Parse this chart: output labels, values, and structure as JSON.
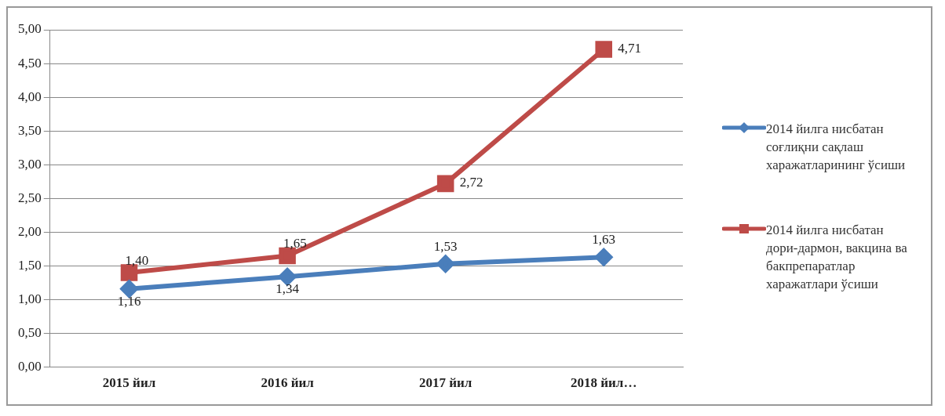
{
  "chart_data": {
    "type": "line",
    "categories": [
      "2015 йил",
      "2016 йил",
      "2017 йил",
      "2018 йил…"
    ],
    "series": [
      {
        "name": "2014 йилга нисбатан соғлиқни сақлаш харажатларининг ўсиши",
        "color": "#4a7ebb",
        "marker": "diamond",
        "values": [
          1.16,
          1.34,
          1.53,
          1.63
        ],
        "value_labels": [
          "1,16",
          "1,34",
          "1,53",
          "1,63"
        ]
      },
      {
        "name": "2014 йилга нисбатан дори-дармон, вакцина ва бакпрепаратлар харажатлари ўсиши",
        "color": "#be4b48",
        "marker": "square",
        "values": [
          1.4,
          1.65,
          2.72,
          4.71
        ],
        "value_labels": [
          "1,40",
          "1,65",
          "2,72",
          "4,71"
        ]
      }
    ],
    "ylim": [
      0,
      5
    ],
    "yticks": [
      {
        "value": 0,
        "label": "0,00"
      },
      {
        "value": 0.5,
        "label": "0,50"
      },
      {
        "value": 1,
        "label": "1,00"
      },
      {
        "value": 1.5,
        "label": "1,50"
      },
      {
        "value": 2,
        "label": "2,00"
      },
      {
        "value": 2.5,
        "label": "2,50"
      },
      {
        "value": 3,
        "label": "3,00"
      },
      {
        "value": 3.5,
        "label": "3,50"
      },
      {
        "value": 4,
        "label": "4,00"
      },
      {
        "value": 4.5,
        "label": "4,50"
      },
      {
        "value": 5,
        "label": "5,00"
      }
    ],
    "grid": "y",
    "legend": "right",
    "line_style": "solid"
  }
}
